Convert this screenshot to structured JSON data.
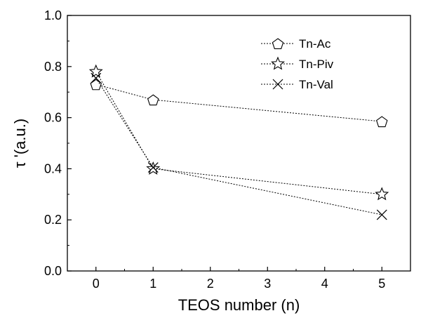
{
  "chart_data": {
    "type": "line",
    "xlabel": "TEOS number (n)",
    "ylabel": "τ '(a.u.)",
    "xlim": [
      -0.5,
      5.5
    ],
    "ylim": [
      0.0,
      1.0
    ],
    "x_ticks": [
      0,
      1,
      2,
      3,
      4,
      5
    ],
    "x_tick_labels": [
      "0",
      "1",
      "2",
      "3",
      "4",
      "5"
    ],
    "y_ticks": [
      0.0,
      0.2,
      0.4,
      0.6,
      0.8,
      1.0
    ],
    "y_tick_labels": [
      "0.0",
      "0.2",
      "0.4",
      "0.6",
      "0.8",
      "1.0"
    ],
    "grid": false,
    "legend_position": "top-right",
    "line_style": "dotted",
    "series": [
      {
        "name": "Tn-Ac",
        "marker": "pentagon",
        "x": [
          0,
          1,
          5
        ],
        "y": [
          0.73,
          0.67,
          0.585
        ]
      },
      {
        "name": "Tn-Piv",
        "marker": "star",
        "x": [
          0,
          1,
          5
        ],
        "y": [
          0.78,
          0.4,
          0.3
        ]
      },
      {
        "name": "Tn-Val",
        "marker": "cross",
        "x": [
          0,
          1,
          5
        ],
        "y": [
          0.755,
          0.405,
          0.22
        ]
      }
    ]
  }
}
